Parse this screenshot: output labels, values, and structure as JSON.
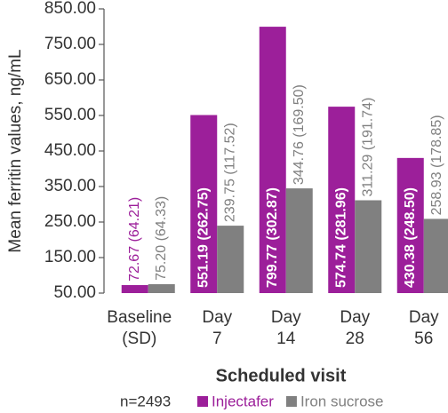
{
  "chart_data": {
    "type": "bar",
    "y_label": "Mean ferritin values, ng/mL",
    "x_label": "Scheduled visit",
    "note": "n=2493",
    "categories": [
      [
        "Baseline",
        "(SD)"
      ],
      [
        "Day",
        "7"
      ],
      [
        "Day",
        "14"
      ],
      [
        "Day",
        "28"
      ],
      [
        "Day",
        "56"
      ]
    ],
    "series": [
      {
        "name": "Injectafer",
        "color": "#9c1f9a",
        "values": [
          72.67,
          551.19,
          799.77,
          574.74,
          430.38
        ],
        "value_labels": [
          "72.67 (64.21)",
          "551.19 (262.75)",
          "799.77 (302.87)",
          "574.74 (281.96)",
          "430.38 (248.50)"
        ]
      },
      {
        "name": "Iron sucrose",
        "color": "#808080",
        "values": [
          75.2,
          239.75,
          344.76,
          311.29,
          258.93
        ],
        "value_labels": [
          "75.20 (64.33)",
          "239.75 (117.52)",
          "344.76 (169.50)",
          "311.29 (191.74)",
          "258.93 (178.85)"
        ]
      }
    ],
    "ylim": [
      50,
      850
    ],
    "yticks": [
      {
        "value": 50,
        "label": "50.00"
      },
      {
        "value": 150,
        "label": "150.00"
      },
      {
        "value": 250,
        "label": "250.00"
      },
      {
        "value": 350,
        "label": "350.00"
      },
      {
        "value": 450,
        "label": "450.00"
      },
      {
        "value": 550,
        "label": "550.00"
      },
      {
        "value": 650,
        "label": "650.00"
      },
      {
        "value": 750,
        "label": "750.00"
      },
      {
        "value": 850,
        "label": "850.00"
      }
    ],
    "grid": false
  }
}
